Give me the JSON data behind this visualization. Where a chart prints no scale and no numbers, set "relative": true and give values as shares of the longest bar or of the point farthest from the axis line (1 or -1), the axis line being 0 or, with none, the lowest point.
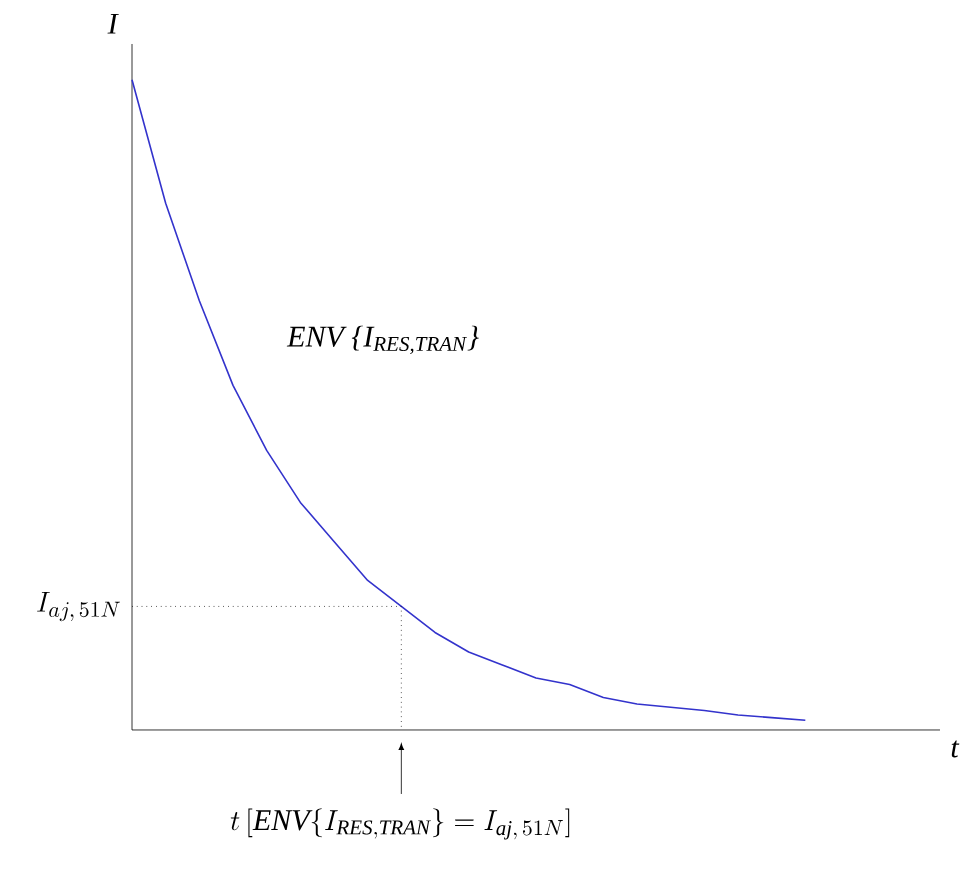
{
  "chart_data": {
    "type": "line",
    "relative": true,
    "xlabel": "t",
    "ylabel": "I",
    "categories": [
      null,
      null,
      null,
      null,
      null,
      null,
      null,
      null,
      null,
      null,
      null,
      null,
      null,
      null,
      null,
      null,
      null,
      null,
      null,
      null,
      null
    ],
    "series": [
      {
        "color": "#3333cc",
        "values": [
          1.0,
          0.81,
          0.66,
          0.53,
          0.43,
          0.35,
          0.29,
          0.23,
          0.19,
          0.15,
          0.12,
          0.1,
          0.08,
          0.07,
          0.05,
          0.04,
          0.035,
          0.03,
          0.023,
          0.019,
          0.015
        ]
      }
    ],
    "ref_lines": [
      {
        "axis": "y",
        "value": 0.19,
        "label": "I_{aj,\\,51N}",
        "color": "#000000",
        "line_style": "dotted"
      }
    ],
    "annotations": [
      "ENV {I$_{RES,TRAN}$}",
      "t\\,[\\mathit{ENV}\\{I_{\\mathit{RES,TRAN}}\\} = I_{\\mathit{aj},\\,51N}]"
    ],
    "marker": "none"
  }
}
